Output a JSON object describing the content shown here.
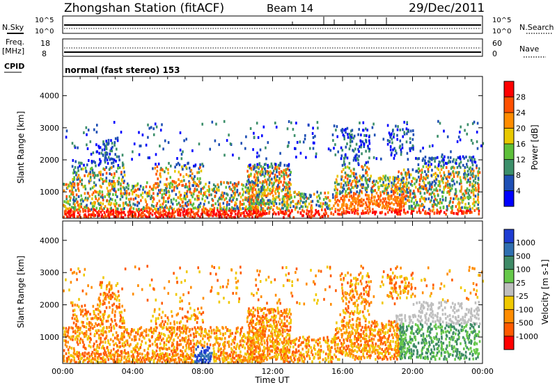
{
  "header": {
    "station": "Zhongshan Station (fitACF)",
    "beam": "Beam 14",
    "date": "29/Dec/2011"
  },
  "top_panels": {
    "nsky_label": "N.Sky",
    "nsky_ticks": [
      "10^5",
      "10^0"
    ],
    "nsearch_label": "N.Search",
    "nsearch_ticks": [
      "10^5",
      "10^0"
    ],
    "freq_label_1": "Freq.",
    "freq_label_2": "[MHz]",
    "freq_ticks": [
      "18",
      "8"
    ],
    "nave_label": "Nave",
    "nave_ticks": [
      "60",
      "0"
    ],
    "cpid_label": "CPID",
    "cpid_text": "normal (fast stereo) 153"
  },
  "chart_data": [
    {
      "type": "heatmap",
      "title": "",
      "xlabel": "Time UT",
      "ylabel": "Slant Range [km]",
      "x_ticks": [
        "00:00",
        "04:00",
        "08:00",
        "12:00",
        "16:00",
        "20:00",
        "00:00"
      ],
      "y_ticks": [
        1000,
        2000,
        3000,
        4000
      ],
      "ylim": [
        180,
        4600
      ],
      "xlim_hours": [
        0,
        24
      ],
      "colorbar": {
        "label": "Power [dB]",
        "ticks": [
          "4",
          "8",
          "12",
          "16",
          "20",
          "24",
          "28"
        ],
        "colors": [
          "#0000ff",
          "#1e4fb4",
          "#3c8f6a",
          "#5dbf3a",
          "#e8c800",
          "#ff8c00",
          "#ff5000",
          "#ff0000"
        ]
      }
    },
    {
      "type": "heatmap",
      "title": "",
      "xlabel": "Time UT",
      "ylabel": "Slant Range [km]",
      "x_ticks": [
        "00:00",
        "04:00",
        "08:00",
        "12:00",
        "16:00",
        "20:00",
        "00:00"
      ],
      "y_ticks": [
        1000,
        2000,
        3000,
        4000
      ],
      "ylim": [
        180,
        4600
      ],
      "xlim_hours": [
        0,
        24
      ],
      "colorbar": {
        "label": "Velocity [m s-1]",
        "ticks": [
          "1000",
          "500",
          "100",
          "25",
          "-25",
          "-100",
          "-500",
          "-1000"
        ],
        "colors": [
          "#1e3cd2",
          "#2f6fb0",
          "#3e8a66",
          "#66c84a",
          "#bebebe",
          "#f0c800",
          "#ff8c00",
          "#ff5a00",
          "#ff0000"
        ]
      }
    }
  ]
}
